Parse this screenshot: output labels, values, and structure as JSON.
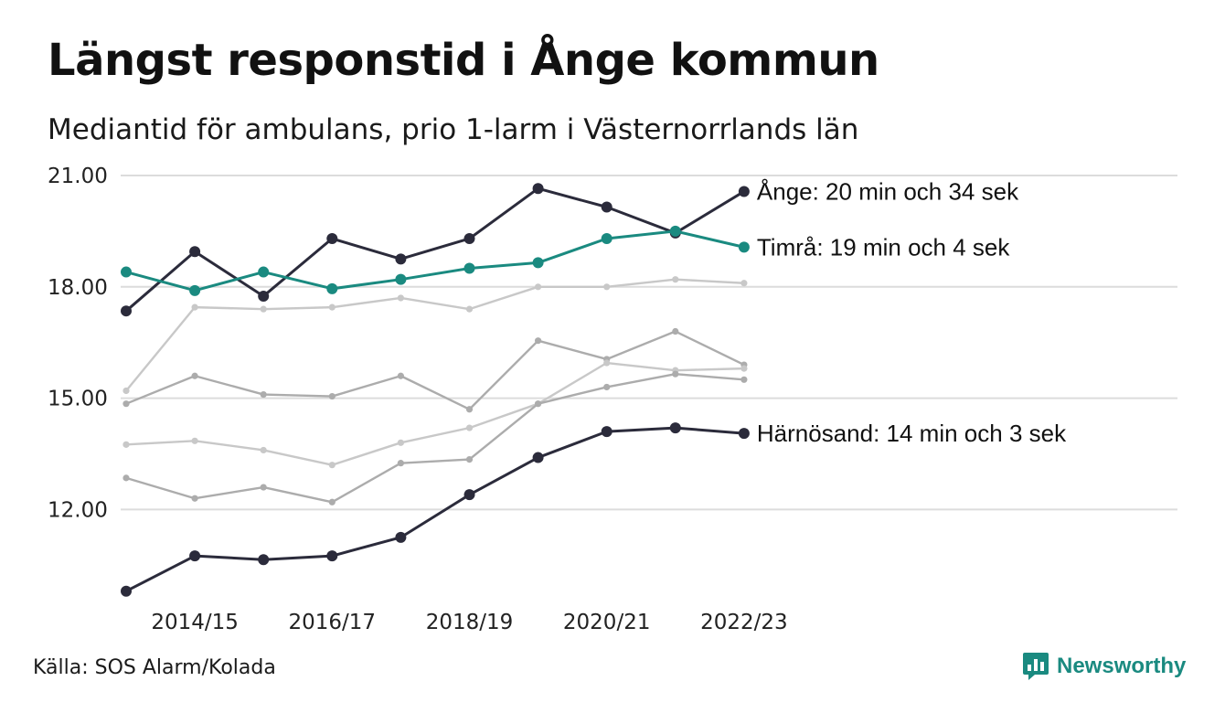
{
  "title": "Längst responstid i Ånge kommun",
  "subtitle": "Mediantid för ambulans, prio 1-larm i Västernorrlands län",
  "source": "Källa: SOS Alarm/Kolada",
  "brand": {
    "name": "Newsworthy",
    "icon": "bar-chart-speech-bubble-icon",
    "color": "#1a8a80"
  },
  "chart_data": {
    "type": "line",
    "title": "Längst responstid i Ånge kommun",
    "subtitle": "Mediantid för ambulans, prio 1-larm i Västernorrlands län",
    "x": [
      "2013/14",
      "2014/15",
      "2015/16",
      "2016/17",
      "2017/18",
      "2018/19",
      "2019/20",
      "2020/21",
      "2021/22",
      "2022/23"
    ],
    "x_tick_labels": [
      "2014/15",
      "2016/17",
      "2018/19",
      "2020/21",
      "2022/23"
    ],
    "ylim": [
      9.5,
      21.5
    ],
    "y_ticks": [
      12,
      15,
      18,
      21
    ],
    "y_tick_labels": [
      "12.00",
      "15.00",
      "18.00",
      "21.00"
    ],
    "grid": true,
    "colors": {
      "highlight_dark": "#2b2b3b",
      "highlight_teal": "#1a8a80",
      "background_series": [
        "#c8c8c8",
        "#acacac"
      ]
    },
    "series": [
      {
        "name": "Ånge",
        "label": "Ånge: 20 min och 34 sek",
        "color": "#2b2b3b",
        "highlight": true,
        "values": [
          17.35,
          18.95,
          17.75,
          19.3,
          18.75,
          19.3,
          20.65,
          20.15,
          19.45,
          20.57
        ]
      },
      {
        "name": "Timrå",
        "label": "Timrå: 19 min och 4 sek",
        "color": "#1a8a80",
        "highlight": true,
        "values": [
          18.4,
          17.9,
          18.4,
          17.95,
          18.2,
          18.5,
          18.65,
          19.3,
          19.5,
          19.07
        ]
      },
      {
        "name": "Härnösand",
        "label": "Härnösand: 14 min och 3 sek",
        "color": "#2b2b3b",
        "highlight": true,
        "values": [
          9.8,
          10.75,
          10.65,
          10.75,
          11.25,
          12.4,
          13.4,
          14.1,
          14.2,
          14.05
        ]
      },
      {
        "color": "#c8c8c8",
        "highlight": false,
        "values": [
          15.2,
          17.45,
          17.4,
          17.45,
          17.7,
          17.4,
          18.0,
          18.0,
          18.2,
          18.1
        ]
      },
      {
        "color": "#acacac",
        "highlight": false,
        "values": [
          14.85,
          15.6,
          15.1,
          15.05,
          15.6,
          14.7,
          16.55,
          16.05,
          16.8,
          15.9
        ]
      },
      {
        "color": "#c8c8c8",
        "highlight": false,
        "values": [
          13.75,
          13.85,
          13.6,
          13.2,
          13.8,
          14.2,
          14.85,
          15.95,
          15.75,
          15.8
        ]
      },
      {
        "color": "#acacac",
        "highlight": false,
        "values": [
          12.85,
          12.3,
          12.6,
          12.2,
          13.25,
          13.35,
          14.85,
          15.3,
          15.65,
          15.5
        ]
      }
    ]
  }
}
